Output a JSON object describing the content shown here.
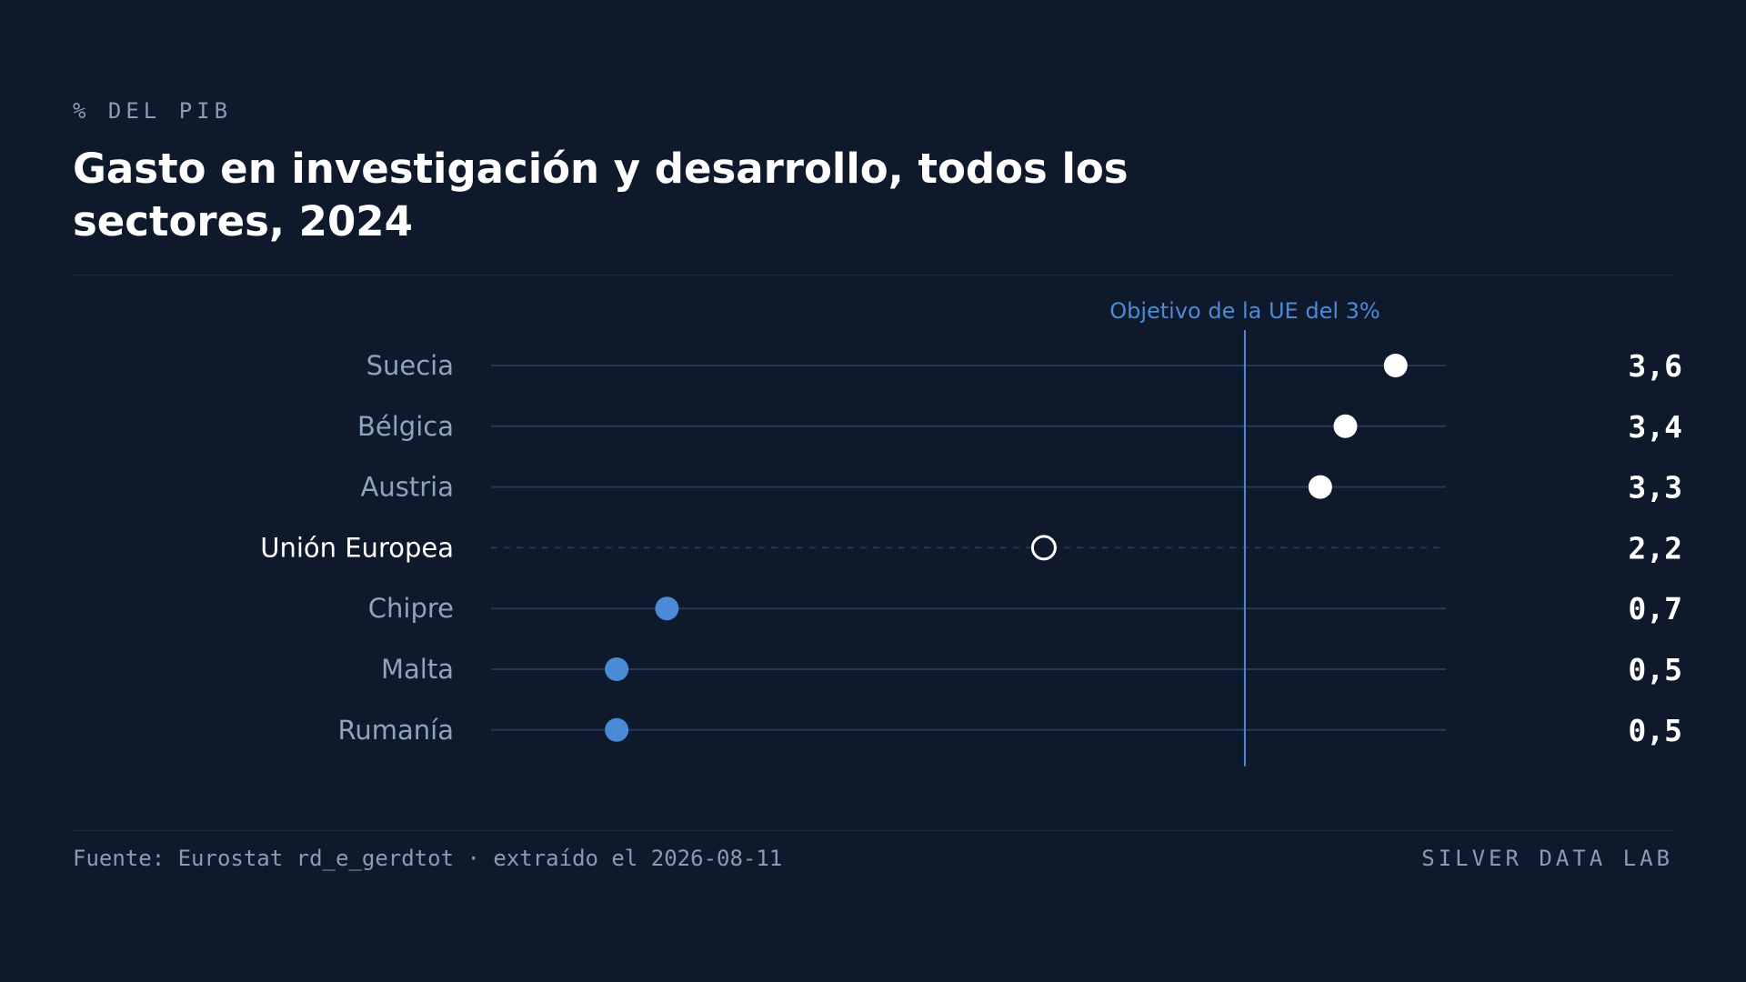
{
  "header": {
    "kicker": "% DEL PIB",
    "title": "Gasto en investigación y desarrollo, todos los sectores, 2024"
  },
  "footer": {
    "source": "Fuente: Eurostat rd_e_gerdtot · extraído el 2026-08-11",
    "brand": "SILVER DATA LAB"
  },
  "colors": {
    "background": "#0e1a2b",
    "above_target": "#ffffff",
    "below_target": "#4a8ad6",
    "reference": "#4a8ad6",
    "track": "#243a52",
    "label": "#8fa3bd",
    "label_highlight": "#ffffff"
  },
  "chart_data": {
    "type": "dot",
    "title": "Gasto en investigación y desarrollo, todos los sectores, 2024",
    "unit": "% del PIB",
    "xlim": [
      0,
      3.8
    ],
    "grid": false,
    "reference_line": {
      "value": 3.0,
      "label": "Objetivo de la UE del 3%"
    },
    "categories": [
      "Suecia",
      "Bélgica",
      "Austria",
      "Unión Europea",
      "Chipre",
      "Malta",
      "Rumanía"
    ],
    "values": [
      3.6,
      3.4,
      3.3,
      2.2,
      0.7,
      0.5,
      0.5
    ],
    "value_labels": [
      "3,6",
      "3,4",
      "3,3",
      "2,2",
      "0,7",
      "0,5",
      "0,5"
    ],
    "highlight": "Unión Europea"
  }
}
